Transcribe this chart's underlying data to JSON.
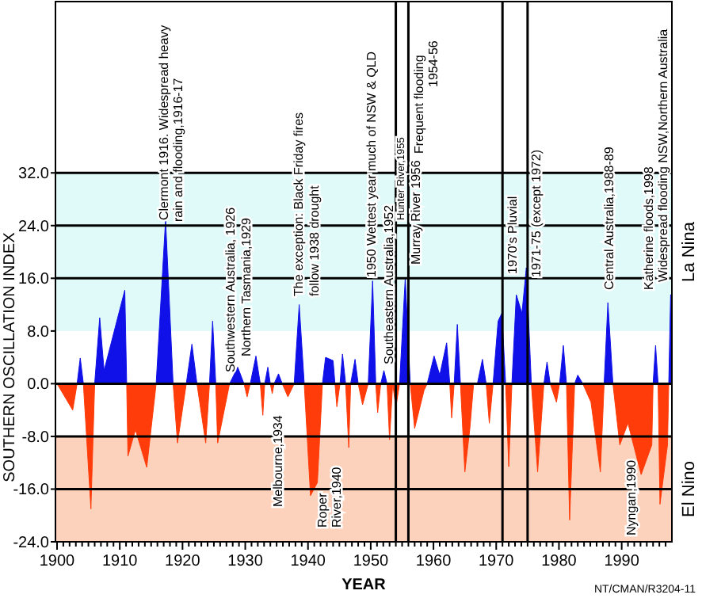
{
  "chart_data": {
    "type": "area",
    "xlabel": "YEAR",
    "ylabel": "SOUTHERN OSCILLATION INDEX",
    "xlim": [
      1899.75,
      1998
    ],
    "ylim": [
      -24,
      58
    ],
    "xticks": [
      1900,
      {
        "value": 1901,
        "label": null
      },
      {
        "value": 1902,
        "label": null
      },
      {
        "value": 1903,
        "label": null
      },
      {
        "value": 1904,
        "label": null
      },
      {
        "value": 1905,
        "label": null
      },
      {
        "value": 1906,
        "label": null
      },
      {
        "value": 1907,
        "label": null
      },
      {
        "value": 1908,
        "label": null
      },
      {
        "value": 1909,
        "label": null
      },
      1910,
      {
        "value": 1911,
        "label": null
      },
      {
        "value": 1912,
        "label": null
      },
      {
        "value": 1913,
        "label": null
      },
      {
        "value": 1914,
        "label": null
      },
      {
        "value": 1915,
        "label": null
      },
      {
        "value": 1916,
        "label": null
      },
      {
        "value": 1917,
        "label": null
      },
      {
        "value": 1918,
        "label": null
      },
      {
        "value": 1919,
        "label": null
      },
      1920,
      {
        "value": 1921,
        "label": null
      },
      {
        "value": 1922,
        "label": null
      },
      {
        "value": 1923,
        "label": null
      },
      {
        "value": 1924,
        "label": null
      },
      {
        "value": 1925,
        "label": null
      },
      {
        "value": 1926,
        "label": null
      },
      {
        "value": 1927,
        "label": null
      },
      {
        "value": 1928,
        "label": null
      },
      {
        "value": 1929,
        "label": null
      },
      1930,
      {
        "value": 1931,
        "label": null
      },
      {
        "value": 1932,
        "label": null
      },
      {
        "value": 1933,
        "label": null
      },
      {
        "value": 1934,
        "label": null
      },
      {
        "value": 1935,
        "label": null
      },
      {
        "value": 1936,
        "label": null
      },
      {
        "value": 1937,
        "label": null
      },
      {
        "value": 1938,
        "label": null
      },
      {
        "value": 1939,
        "label": null
      },
      1940,
      {
        "value": 1941,
        "label": null
      },
      {
        "value": 1942,
        "label": null
      },
      {
        "value": 1943,
        "label": null
      },
      {
        "value": 1944,
        "label": null
      },
      {
        "value": 1945,
        "label": null
      },
      {
        "value": 1946,
        "label": null
      },
      {
        "value": 1947,
        "label": null
      },
      {
        "value": 1948,
        "label": null
      },
      {
        "value": 1949,
        "label": null
      },
      1950,
      {
        "value": 1951,
        "label": null
      },
      {
        "value": 1952,
        "label": null
      },
      {
        "value": 1953,
        "label": null
      },
      {
        "value": 1954,
        "label": null
      },
      {
        "value": 1955,
        "label": null
      },
      {
        "value": 1956,
        "label": null
      },
      {
        "value": 1957,
        "label": null
      },
      {
        "value": 1958,
        "label": null
      },
      {
        "value": 1959,
        "label": null
      },
      1960,
      {
        "value": 1961,
        "label": null
      },
      {
        "value": 1962,
        "label": null
      },
      {
        "value": 1963,
        "label": null
      },
      {
        "value": 1964,
        "label": null
      },
      {
        "value": 1965,
        "label": null
      },
      {
        "value": 1966,
        "label": null
      },
      {
        "value": 1967,
        "label": null
      },
      {
        "value": 1968,
        "label": null
      },
      {
        "value": 1969,
        "label": null
      },
      1970,
      {
        "value": 1971,
        "label": null
      },
      {
        "value": 1972,
        "label": null
      },
      {
        "value": 1973,
        "label": null
      },
      {
        "value": 1974,
        "label": null
      },
      {
        "value": 1975,
        "label": null
      },
      {
        "value": 1976,
        "label": null
      },
      {
        "value": 1977,
        "label": null
      },
      {
        "value": 1978,
        "label": null
      },
      {
        "value": 1979,
        "label": null
      },
      1980,
      {
        "value": 1981,
        "label": null
      },
      {
        "value": 1982,
        "label": null
      },
      {
        "value": 1983,
        "label": null
      },
      {
        "value": 1984,
        "label": null
      },
      {
        "value": 1985,
        "label": null
      },
      {
        "value": 1986,
        "label": null
      },
      {
        "value": 1987,
        "label": null
      },
      {
        "value": 1988,
        "label": null
      },
      {
        "value": 1989,
        "label": null
      },
      1990,
      {
        "value": 1991,
        "label": null
      },
      {
        "value": 1992,
        "label": null
      },
      {
        "value": 1993,
        "label": null
      },
      {
        "value": 1994,
        "label": null
      },
      {
        "value": 1995,
        "label": null
      },
      {
        "value": 1996,
        "label": null
      },
      {
        "value": 1997,
        "label": null
      }
    ],
    "yticks": [
      {
        "value": -24,
        "label": "-24.0"
      },
      {
        "value": -16,
        "label": "-16.0"
      },
      {
        "value": -8,
        "label": "-8.0"
      },
      {
        "value": 0,
        "label": "0.0"
      },
      {
        "value": 8,
        "label": "8.0"
      },
      {
        "value": 16,
        "label": "16.0"
      },
      {
        "value": 24,
        "label": "24.0"
      },
      {
        "value": 32,
        "label": "32.0"
      }
    ],
    "bands": [
      {
        "axis": "y",
        "from": 8,
        "to": 32,
        "label": "La Nina",
        "color": "#e0fafa"
      },
      {
        "axis": "y",
        "from": -24,
        "to": -8,
        "label": "El Nino",
        "color": "#fcd2bc"
      }
    ],
    "ref_lines": [
      {
        "axis": "y",
        "value": 32,
        "color": "#000000"
      },
      {
        "axis": "y",
        "value": 24,
        "color": "#000000"
      },
      {
        "axis": "y",
        "value": 16,
        "color": "#000000"
      },
      {
        "axis": "y",
        "value": 0,
        "color": "#000000"
      },
      {
        "axis": "y",
        "value": -8,
        "color": "#000000"
      },
      {
        "axis": "y",
        "value": -16,
        "color": "#000000"
      },
      {
        "axis": "x",
        "value": 1954,
        "color": "#000000"
      },
      {
        "axis": "x",
        "value": 1956,
        "color": "#000000"
      },
      {
        "axis": "x",
        "value": 1971,
        "color": "#000000"
      },
      {
        "axis": "x",
        "value": 1975,
        "color": "#000000"
      }
    ],
    "series": [
      {
        "color": "#1010e8",
        "x": [
          1903.2,
          1903.7,
          1904.2,
          1906.0,
          1906.8,
          1907.5,
          1910.8,
          1911.1,
          1915.8,
          1917.3,
          1918.5,
          1920.6,
          1921.5,
          1922.3,
          1924.3,
          1924.8,
          1925.3,
          1927.5,
          1928.8,
          1929.8,
          1930.8,
          1931.7,
          1932.4,
          1933.1,
          1933.6,
          1934.0,
          1934.6,
          1935.3,
          1935.9,
          1937.8,
          1938.6,
          1939.4,
          1942.3,
          1942.8,
          1944.0,
          1944.3,
          1945.1,
          1945.5,
          1946.0,
          1946.8,
          1947.5,
          1948.0,
          1949.6,
          1950.3,
          1950.8,
          1951.6,
          1952.1,
          1952.6,
          1954.6,
          1955.5,
          1956.3,
          1959.0,
          1960.1,
          1961.0,
          1962.1,
          1962.6,
          1963.3,
          1963.8,
          1964.3,
          1967.0,
          1967.8,
          1968.4,
          1969.5,
          1970.3,
          1970.9,
          1971.5,
          1972.5,
          1973.2,
          1974.1,
          1974.8,
          1975.6,
          1977.6,
          1978.1,
          1978.6,
          1980.1,
          1980.7,
          1981.2,
          1982.5,
          1983.0,
          1983.8,
          1987.2,
          1987.8,
          1988.6,
          1995.0,
          1995.4,
          1995.8,
          1997.5,
          1997.8,
          1998
        ],
        "values": [
          0,
          3.9,
          0,
          0,
          10,
          2,
          14.2,
          0,
          0,
          24.9,
          0,
          0,
          6,
          0,
          0,
          9.5,
          0,
          0,
          2.5,
          0,
          0,
          4.2,
          0,
          0,
          2.5,
          0,
          0,
          1.5,
          0,
          0,
          12,
          0,
          0,
          4,
          3.5,
          0,
          0,
          4.5,
          0,
          0,
          3.7,
          0,
          0,
          15.6,
          0,
          0,
          2,
          0,
          0,
          16,
          0,
          0,
          4.2,
          1.3,
          6.2,
          0,
          0,
          9,
          0,
          0,
          3.7,
          0,
          0,
          9.5,
          10.7,
          0,
          0,
          13.5,
          10.7,
          17.6,
          0,
          0,
          3.3,
          0,
          0,
          5.8,
          0,
          0,
          1.3,
          0,
          0,
          12.3,
          0,
          0,
          5.8,
          0,
          0,
          13.5,
          13.5
        ]
      },
      {
        "color": "#ff3c0a",
        "x": [
          1900.0,
          1902.5,
          1903.2,
          1904.2,
          1905.4,
          1906.0,
          1911.1,
          1911.3,
          1912.5,
          1914.3,
          1915.8,
          1918.5,
          1919.2,
          1920.6,
          1922.3,
          1923.7,
          1924.3,
          1925.3,
          1925.6,
          1927.5,
          1929.8,
          1930.3,
          1930.8,
          1932.4,
          1932.8,
          1933.1,
          1934.0,
          1934.3,
          1934.6,
          1935.9,
          1936.8,
          1937.8,
          1939.4,
          1940.4,
          1941.5,
          1942.3,
          1944.3,
          1944.6,
          1945.1,
          1946.0,
          1946.5,
          1946.8,
          1948.0,
          1948.7,
          1949.6,
          1950.8,
          1951.1,
          1951.6,
          1952.6,
          1953.0,
          1953.5,
          1954.0,
          1954.6,
          1956.3,
          1957.0,
          1958.5,
          1959.0,
          1962.6,
          1962.9,
          1963.3,
          1964.3,
          1965.0,
          1965.8,
          1966.4,
          1968.4,
          1968.9,
          1969.5,
          1971.5,
          1972.0,
          1972.5,
          1975.6,
          1976.6,
          1977.6,
          1978.6,
          1979.6,
          1980.1,
          1981.2,
          1981.7,
          1982.5,
          1983.8,
          1985.1,
          1986.6,
          1987.2,
          1988.6,
          1989.7,
          1991.0,
          1993.1,
          1994.8,
          1995.0,
          1995.8,
          1996.1,
          1997.3,
          1997.5
        ],
        "values": [
          0,
          -4,
          0,
          0,
          -19,
          0,
          0,
          -11,
          -7,
          -12.7,
          0,
          0,
          -9,
          0,
          0,
          -9,
          0,
          0,
          -9,
          0,
          0,
          -2,
          0,
          0,
          -4.8,
          0,
          0,
          -1.5,
          0,
          0,
          -2,
          0,
          0,
          -17,
          -15,
          0,
          0,
          -3.5,
          0,
          0,
          -9.7,
          0,
          0,
          -3.2,
          0,
          0,
          -4.4,
          0,
          0,
          -8.5,
          0,
          -3.6,
          0,
          0,
          -6.8,
          -1,
          0,
          0,
          -5.2,
          0,
          0,
          -13.4,
          -6.8,
          0,
          0,
          -6,
          0,
          0,
          -12.6,
          0,
          0,
          -13.4,
          0,
          0,
          -2.8,
          0,
          0,
          -20.7,
          0,
          0,
          -2.8,
          -13.4,
          0,
          0,
          -9.3,
          -6,
          -13.8,
          -9.3,
          0,
          0,
          -18.3,
          -9.3,
          0
        ]
      }
    ],
    "annotations": [
      "Clermont 1916.  Widespread heavy",
      "rain and flooding,1916-17",
      "Southwestern Australia, 1926",
      "Northern Tasmania,1929",
      "The exception: Black Friday fires",
      "follow 1938 drought",
      "Melbourne,1934",
      "Roper",
      "River,1940",
      "1950 Wettest year  much of NSW & QLD",
      "Southeastern Australia,1952",
      "Hunter River,1955",
      "Murray River 1956",
      "Frequent flooding",
      "1954-56",
      "1970's Pluvial",
      "1971-75 (except 1972)",
      "Central Australia,1988-89",
      "Katherine floods,1998",
      "Widespread flooding NSW,Northern Australia",
      "Nyngan,1990",
      "NT/CMAN/R3204-11"
    ]
  }
}
